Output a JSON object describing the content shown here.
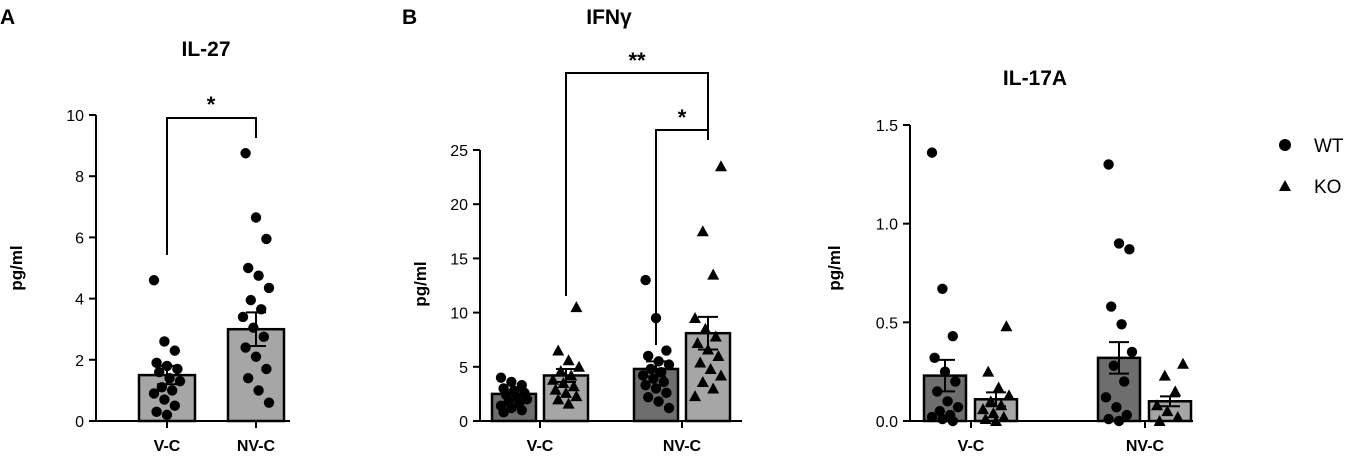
{
  "panel_labels": [
    "A",
    "B"
  ],
  "legend": {
    "items": [
      {
        "label": "WT",
        "marker": "circle"
      },
      {
        "label": "KO",
        "marker": "triangle"
      }
    ]
  },
  "colors": {
    "wt_bar": "#6e6e6e",
    "ko_bar": "#a6a6a6",
    "il27_bar": "#a6a6a6",
    "marker": "#000000"
  },
  "chart_data": [
    {
      "type": "bar",
      "title": "IL-27",
      "panel": "A",
      "ylabel": "pg/ml",
      "ylim": [
        0,
        10
      ],
      "yticks": [
        0,
        2,
        4,
        6,
        8,
        10
      ],
      "ytick_labels": [
        "0",
        "2",
        "4",
        "6",
        "8",
        "10"
      ],
      "categories": [
        "V-C",
        "NV-C"
      ],
      "series": [
        {
          "marker": "circle",
          "means": [
            1.5,
            3.0
          ],
          "sem": [
            0.3,
            0.55
          ],
          "points": [
            [
              4.6,
              2.6,
              2.3,
              1.9,
              1.8,
              1.7,
              1.6,
              1.4,
              1.3,
              1.1,
              1.0,
              0.9,
              0.7,
              0.5,
              0.3,
              0.2
            ],
            [
              8.75,
              6.65,
              5.95,
              5.0,
              4.75,
              4.35,
              3.95,
              3.65,
              3.4,
              3.05,
              2.75,
              2.4,
              2.1,
              1.7,
              1.4,
              1.0,
              0.6
            ]
          ]
        }
      ],
      "significance": [
        {
          "label": "*",
          "between": [
            0,
            1
          ]
        }
      ]
    },
    {
      "type": "bar",
      "title": "IFNγ",
      "panel": "B",
      "ylabel": "pg/ml",
      "ylim": [
        0,
        25
      ],
      "yticks": [
        0,
        5,
        10,
        15,
        20,
        25
      ],
      "ytick_labels": [
        "0",
        "5",
        "10",
        "15",
        "20",
        "25"
      ],
      "categories": [
        "V-C",
        "NV-C"
      ],
      "series": [
        {
          "marker": "circle",
          "means": [
            2.5,
            4.8
          ],
          "sem": [
            0.3,
            0.7
          ],
          "points": [
            [
              4.0,
              3.6,
              3.3,
              3.0,
              2.8,
              2.6,
              2.4,
              2.2,
              2.0,
              1.8,
              1.6,
              1.4,
              1.2,
              1.0,
              0.8
            ],
            [
              13.0,
              9.5,
              6.5,
              6.0,
              5.5,
              5.2,
              4.8,
              4.5,
              4.2,
              3.9,
              3.6,
              3.3,
              3.0,
              2.6,
              2.2,
              1.8,
              1.2
            ]
          ]
        },
        {
          "marker": "triangle",
          "means": [
            4.2,
            8.1
          ],
          "sem": [
            0.6,
            1.5
          ],
          "points": [
            [
              10.5,
              6.5,
              5.6,
              5.0,
              4.6,
              4.2,
              3.8,
              3.5,
              3.2,
              2.9,
              2.6,
              2.3,
              2.0,
              1.6
            ],
            [
              23.5,
              17.5,
              13.5,
              9.5,
              8.5,
              7.8,
              7.2,
              6.6,
              6.0,
              5.4,
              4.8,
              4.2,
              3.6,
              3.0,
              2.3
            ]
          ]
        }
      ],
      "significance": [
        {
          "label": "**",
          "between": [
            [
              0,
              1
            ],
            [
              1,
              1
            ]
          ]
        },
        {
          "label": "*",
          "between": [
            [
              1,
              0
            ],
            [
              1,
              1
            ]
          ]
        }
      ]
    },
    {
      "type": "bar",
      "title": "IL-17A",
      "ylabel": "pg/ml",
      "ylim": [
        0,
        1.5
      ],
      "yticks": [
        0,
        0.5,
        1.0,
        1.5
      ],
      "ytick_labels": [
        "0.0",
        "0.5",
        "1.0",
        "1.5"
      ],
      "categories": [
        "V-C",
        "NV-C"
      ],
      "series": [
        {
          "marker": "circle",
          "means": [
            0.23,
            0.32
          ],
          "sem": [
            0.08,
            0.08
          ],
          "points": [
            [
              1.36,
              0.67,
              0.43,
              0.32,
              0.25,
              0.2,
              0.15,
              0.1,
              0.07,
              0.05,
              0.03,
              0.02,
              0.01,
              0.0
            ],
            [
              1.3,
              0.9,
              0.87,
              0.58,
              0.49,
              0.35,
              0.28,
              0.2,
              0.12,
              0.07,
              0.03,
              0.01,
              0.0
            ]
          ]
        },
        {
          "marker": "triangle",
          "means": [
            0.11,
            0.1
          ],
          "sem": [
            0.035,
            0.025
          ],
          "points": [
            [
              0.48,
              0.25,
              0.17,
              0.13,
              0.1,
              0.08,
              0.06,
              0.04,
              0.02,
              0.01,
              0.0
            ],
            [
              0.29,
              0.23,
              0.15,
              0.08,
              0.05,
              0.02,
              0.0
            ]
          ]
        }
      ],
      "significance": []
    }
  ]
}
